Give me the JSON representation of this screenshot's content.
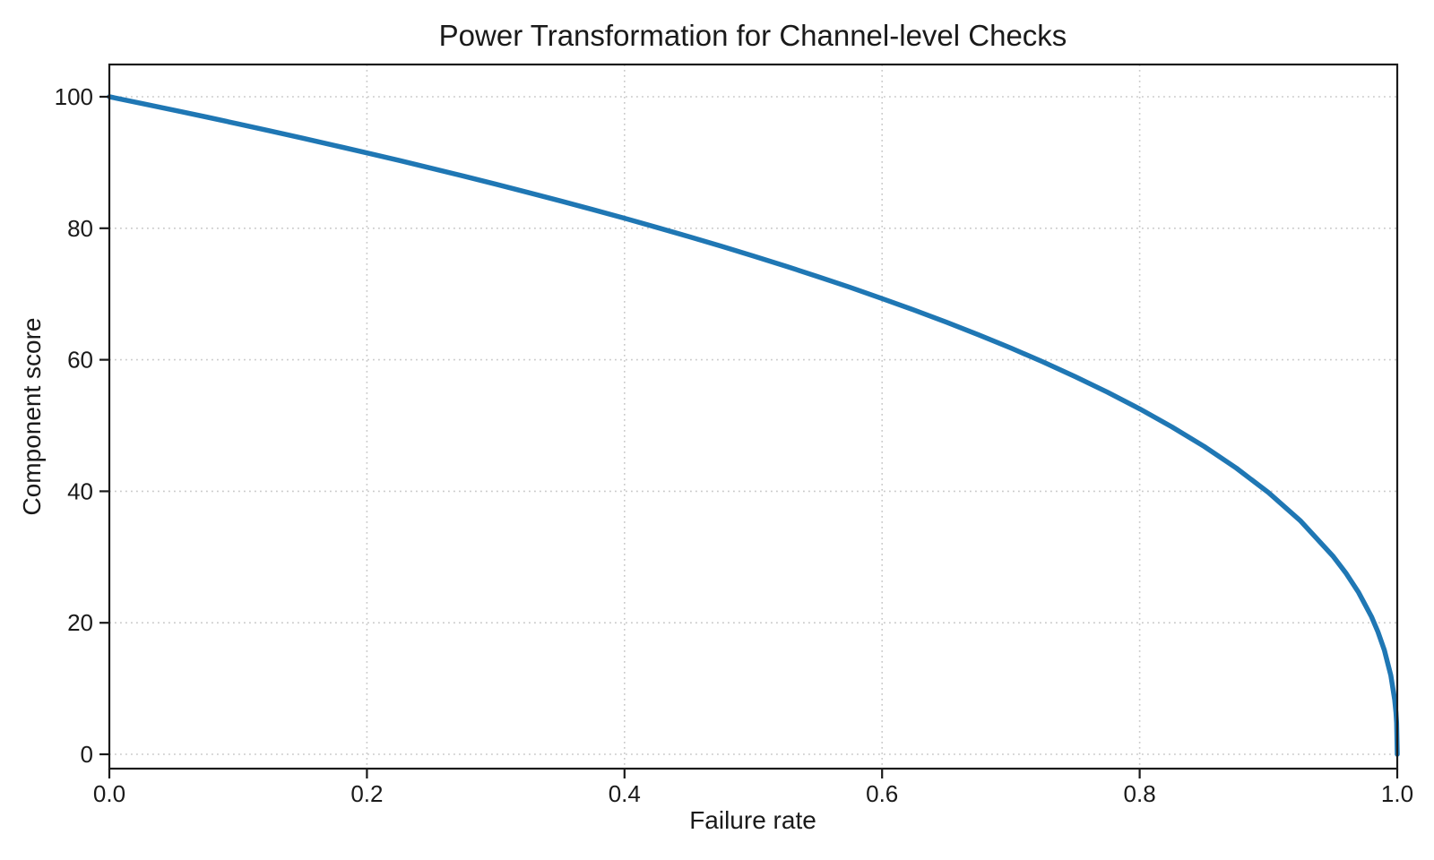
{
  "chart_data": {
    "type": "line",
    "title": "Power Transformation for Channel-level Checks",
    "xlabel": "Failure rate",
    "ylabel": "Component score",
    "xlim": [
      0.0,
      1.0
    ],
    "ylim": [
      -2.2,
      104.9
    ],
    "xticks": [
      "0.0",
      "0.2",
      "0.4",
      "0.6",
      "0.8",
      "1.0"
    ],
    "xtick_values": [
      0.0,
      0.2,
      0.4,
      0.6,
      0.8,
      1.0
    ],
    "yticks": [
      "0",
      "20",
      "40",
      "60",
      "80",
      "100"
    ],
    "ytick_values": [
      0,
      20,
      40,
      60,
      80,
      100
    ],
    "grid": "dotted",
    "grid_color": "#c9c9c9",
    "legend": "none",
    "line_color": "#1f77b4",
    "line_width": 5.5,
    "function": "score = 100 * (1 - failure_rate)^0.4",
    "series": [
      {
        "name": "component score",
        "x": [
          0,
          0.025,
          0.05,
          0.075,
          0.1,
          0.125,
          0.15,
          0.175,
          0.2,
          0.225,
          0.25,
          0.275,
          0.3,
          0.325,
          0.35,
          0.375,
          0.4,
          0.425,
          0.45,
          0.475,
          0.5,
          0.525,
          0.55,
          0.575,
          0.6,
          0.625,
          0.65,
          0.675,
          0.7,
          0.725,
          0.75,
          0.775,
          0.8,
          0.825,
          0.85,
          0.875,
          0.9,
          0.925,
          0.95,
          0.96,
          0.97,
          0.98,
          0.985,
          0.99,
          0.995,
          0.998,
          0.999,
          0.9995,
          1.0
        ],
        "y": [
          100,
          98.99,
          97.97,
          96.93,
          95.87,
          94.8,
          93.71,
          92.59,
          91.46,
          90.31,
          89.13,
          87.93,
          86.7,
          85.45,
          84.17,
          82.86,
          81.52,
          80.14,
          78.73,
          77.28,
          75.79,
          74.25,
          72.66,
          71.02,
          69.31,
          67.55,
          65.71,
          63.79,
          61.78,
          59.67,
          57.43,
          55.07,
          52.53,
          49.8,
          46.82,
          43.53,
          39.81,
          35.48,
          30.17,
          27.6,
          24.6,
          20.91,
          18.64,
          15.85,
          12.01,
          8.33,
          6.31,
          4.78,
          0
        ]
      }
    ]
  }
}
